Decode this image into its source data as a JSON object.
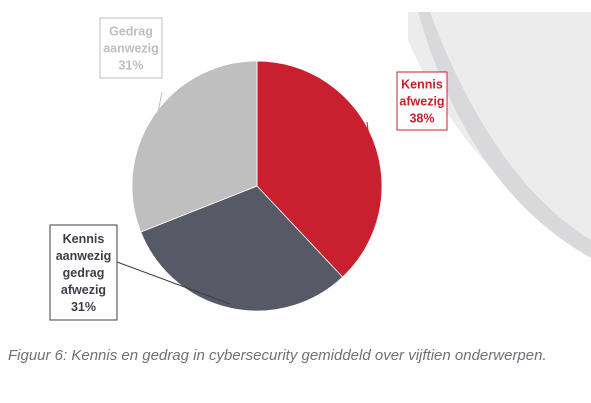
{
  "chart_data": {
    "type": "pie",
    "slices": [
      {
        "label": "Kennis afwezig",
        "value": 38,
        "display": "38%",
        "color": "#c8202f"
      },
      {
        "label": "Kennis aanwezig gedrag afwezig",
        "value": 31,
        "display": "31%",
        "color": "#575a66"
      },
      {
        "label": "Gedrag aanwezig",
        "value": 31,
        "display": "31%",
        "color": "#bfbfbf"
      }
    ],
    "start_angle": "12 o'clock",
    "direction": "clockwise"
  },
  "callouts": [
    {
      "lines": [
        "Kennis",
        "afwezig",
        "38%"
      ],
      "color": "#c8202f"
    },
    {
      "lines": [
        "Kennis",
        "aanwezig",
        "gedrag",
        "afwezig",
        "31%"
      ],
      "color": "#3d3f47"
    },
    {
      "lines": [
        "Gedrag",
        "aanwezig",
        "31%"
      ],
      "color": "#bfbfbf"
    }
  ],
  "caption": "Figuur 6: Kennis en gedrag in cybersecurity gemiddeld over vijftien onderwerpen."
}
